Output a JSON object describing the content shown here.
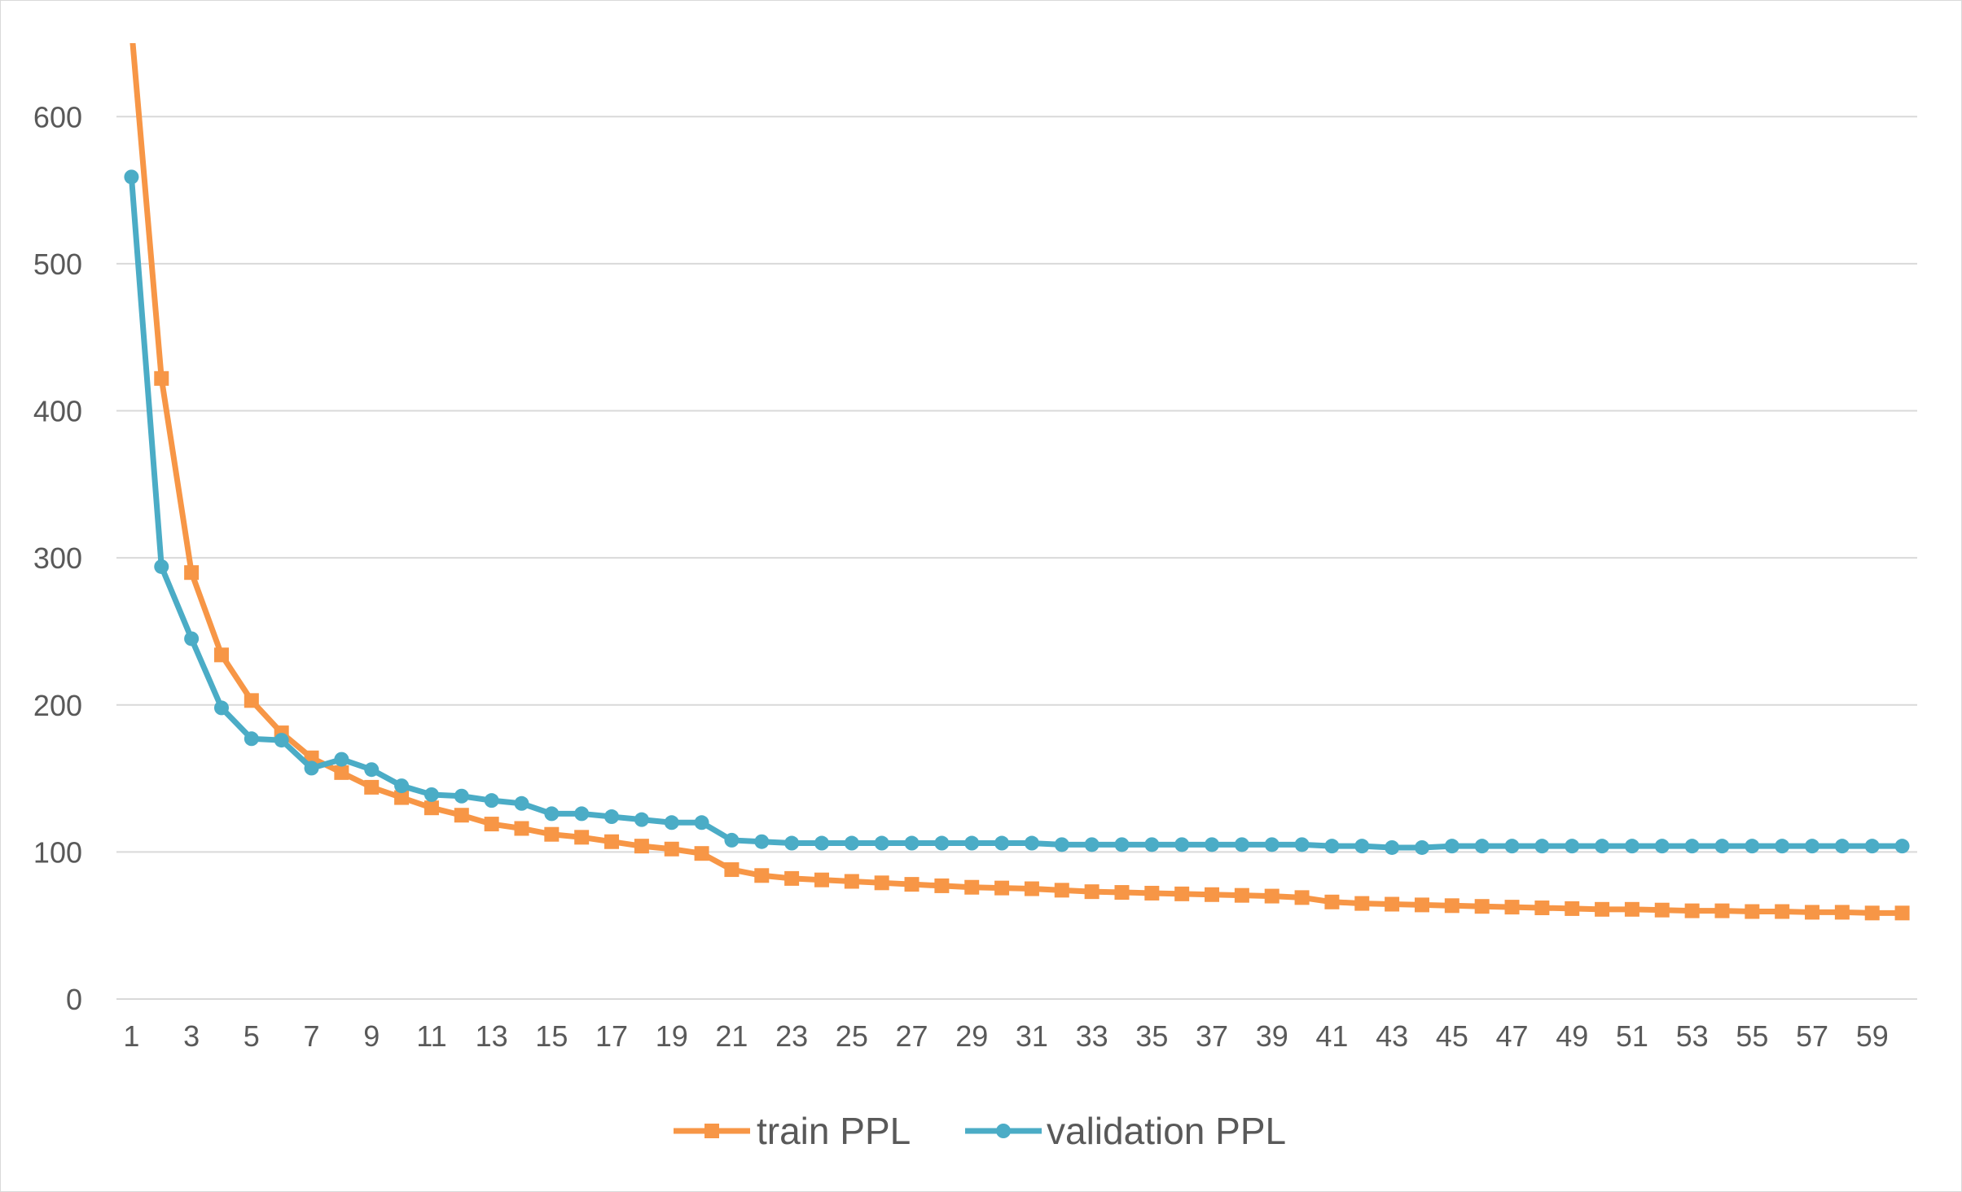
{
  "chart_data": {
    "type": "line",
    "title": "",
    "xlabel": "",
    "ylabel": "",
    "x": [
      1,
      2,
      3,
      4,
      5,
      6,
      7,
      8,
      9,
      10,
      11,
      12,
      13,
      14,
      15,
      16,
      17,
      18,
      19,
      20,
      21,
      22,
      23,
      24,
      25,
      26,
      27,
      28,
      29,
      30,
      31,
      32,
      33,
      34,
      35,
      36,
      37,
      38,
      39,
      40,
      41,
      42,
      43,
      44,
      45,
      46,
      47,
      48,
      49,
      50,
      51,
      52,
      53,
      54,
      55,
      56,
      57,
      58,
      59,
      60
    ],
    "x_tick_labels": [
      "1",
      "3",
      "5",
      "7",
      "9",
      "11",
      "13",
      "15",
      "17",
      "19",
      "21",
      "23",
      "25",
      "27",
      "29",
      "31",
      "33",
      "35",
      "37",
      "39",
      "41",
      "43",
      "45",
      "47",
      "49",
      "51",
      "53",
      "55",
      "57",
      "59"
    ],
    "ylim": [
      0,
      650
    ],
    "y_ticks": [
      0,
      100,
      200,
      300,
      400,
      500,
      600
    ],
    "grid": true,
    "legend_position": "bottom",
    "series": [
      {
        "name": "train PPL",
        "color": "#F79646",
        "marker": "square",
        "values": [
          660,
          422,
          290,
          234,
          203,
          181,
          164,
          154,
          144,
          137,
          130,
          125,
          119,
          116,
          112,
          110,
          107,
          104,
          102,
          99,
          88,
          84,
          82,
          81,
          80,
          79,
          78,
          77,
          76,
          75.5,
          75,
          74,
          73,
          72.5,
          72,
          71.5,
          71,
          70.5,
          70,
          69,
          66,
          65,
          64.5,
          64,
          63.5,
          63,
          62.5,
          62,
          61.5,
          61,
          61,
          60.5,
          60,
          60,
          59.5,
          59.5,
          59,
          59,
          58.5,
          58.5
        ]
      },
      {
        "name": "validation PPL",
        "color": "#4BACC6",
        "marker": "circle",
        "values": [
          559,
          294,
          245,
          198,
          177,
          176,
          157,
          163,
          156,
          145,
          139,
          138,
          135,
          133,
          126,
          126,
          124,
          122,
          120,
          120,
          108,
          107,
          106,
          106,
          106,
          106,
          106,
          106,
          106,
          106,
          106,
          105,
          105,
          105,
          105,
          105,
          105,
          105,
          105,
          105,
          104,
          104,
          103,
          103,
          104,
          104,
          104,
          104,
          104,
          104,
          104,
          104,
          104,
          104,
          104,
          104,
          104,
          104,
          104,
          104
        ]
      }
    ]
  }
}
